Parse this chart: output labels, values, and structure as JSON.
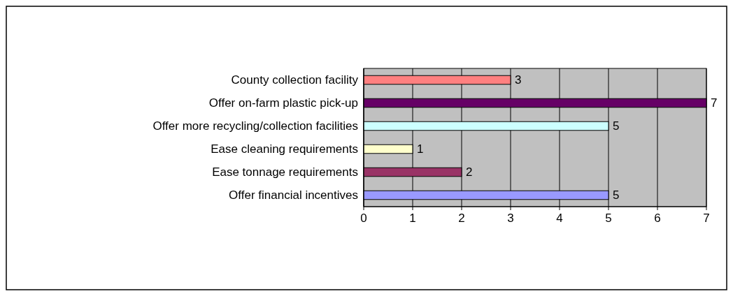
{
  "chart_data": {
    "type": "bar",
    "orientation": "horizontal",
    "categories": [
      "County collection facility",
      "Offer on-farm plastic pick-up",
      "Offer more recycling/collection facilities",
      "Ease cleaning requirements",
      "Ease tonnage requirements",
      "Offer financial incentives"
    ],
    "values": [
      3,
      7,
      5,
      1,
      2,
      5
    ],
    "colors": [
      "#ff8080",
      "#660066",
      "#ccffff",
      "#ffffcc",
      "#993366",
      "#9999ff"
    ],
    "xlim": [
      0,
      7
    ],
    "xticks": [
      0,
      1,
      2,
      3,
      4,
      5,
      6,
      7
    ],
    "grid": "x",
    "data_labels": true
  }
}
